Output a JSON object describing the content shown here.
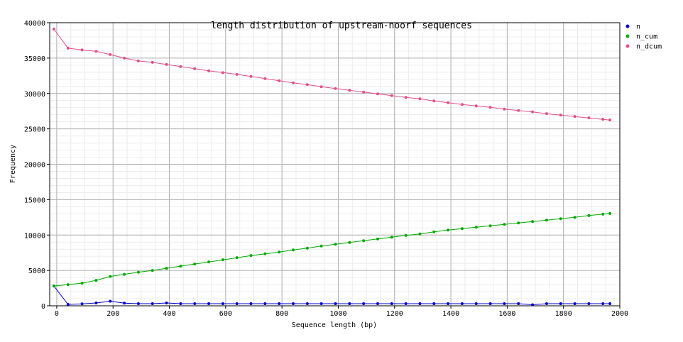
{
  "chart_data": {
    "type": "line",
    "title": "length distribution of upstream-noorf sequences",
    "xlabel": "Sequence length (bp)",
    "ylabel": "Frequency",
    "xlim": [
      -25,
      2000
    ],
    "ylim": [
      0,
      40000
    ],
    "x_ticks": [
      "0",
      "200",
      "400",
      "600",
      "800",
      "1000",
      "1200",
      "1400",
      "1600",
      "1800",
      "2000"
    ],
    "y_ticks": [
      "0",
      "5000",
      "10000",
      "15000",
      "20000",
      "25000",
      "30000",
      "35000",
      "40000"
    ],
    "grid": true,
    "legend_position": "right",
    "x": [
      -10,
      40,
      90,
      140,
      190,
      240,
      290,
      340,
      390,
      440,
      490,
      540,
      590,
      640,
      690,
      740,
      790,
      840,
      890,
      940,
      990,
      1040,
      1090,
      1140,
      1190,
      1240,
      1290,
      1340,
      1390,
      1440,
      1490,
      1540,
      1590,
      1640,
      1690,
      1740,
      1790,
      1840,
      1890,
      1940,
      1965
    ],
    "series": [
      {
        "name": "n",
        "color": "#0000cc",
        "values": [
          2800,
          200,
          280,
          400,
          650,
          380,
          300,
          300,
          400,
          300,
          300,
          300,
          300,
          300,
          300,
          300,
          300,
          300,
          300,
          300,
          300,
          300,
          300,
          300,
          300,
          300,
          300,
          300,
          300,
          300,
          300,
          300,
          300,
          300,
          150,
          300,
          300,
          300,
          300,
          300,
          300
        ]
      },
      {
        "name": "n_cum",
        "color": "#00aa00",
        "values": [
          2800,
          3000,
          3200,
          3600,
          4150,
          4450,
          4750,
          5000,
          5300,
          5600,
          5900,
          6200,
          6500,
          6800,
          7100,
          7350,
          7600,
          7900,
          8150,
          8450,
          8700,
          8950,
          9200,
          9450,
          9700,
          9950,
          10150,
          10450,
          10700,
          10900,
          11100,
          11300,
          11500,
          11700,
          11900,
          12100,
          12300,
          12500,
          12750,
          12950,
          13050
        ]
      },
      {
        "name": "n_dcum",
        "color": "#e0508a",
        "values": [
          39100,
          36400,
          36150,
          35950,
          35500,
          35000,
          34600,
          34400,
          34100,
          33800,
          33500,
          33200,
          32950,
          32700,
          32400,
          32100,
          31800,
          31500,
          31250,
          30950,
          30700,
          30450,
          30200,
          29950,
          29700,
          29450,
          29250,
          28950,
          28700,
          28450,
          28250,
          28050,
          27800,
          27600,
          27400,
          27150,
          26950,
          26750,
          26550,
          26350,
          26250
        ]
      }
    ]
  }
}
